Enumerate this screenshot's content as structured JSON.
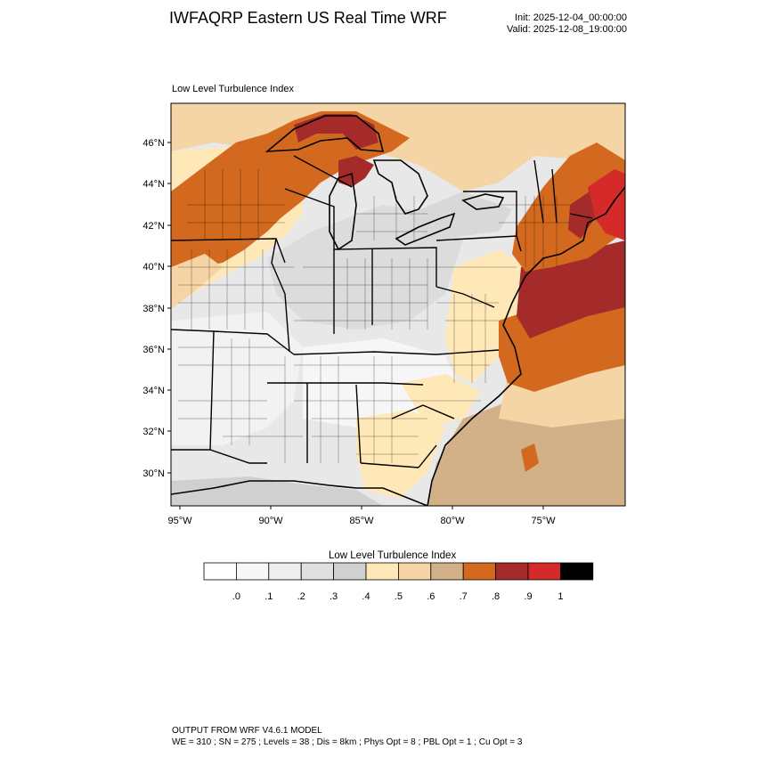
{
  "header": {
    "title": "IWFAQRP Eastern US Real Time WRF",
    "init": "Init: 2025-12-04_00:00:00",
    "valid": "Valid: 2025-12-08_19:00:00"
  },
  "plot": {
    "subtitle": "Low Level Turbulence Index",
    "lat_ticks": [
      "46°N",
      "44°N",
      "42°N",
      "40°N",
      "38°N",
      "36°N",
      "34°N",
      "32°N",
      "30°N"
    ],
    "lon_ticks": [
      "95°W",
      "90°W",
      "85°W",
      "80°W",
      "75°W"
    ]
  },
  "colorbar": {
    "title": "Low Level Turbulence Index",
    "colors": [
      "#ffffff",
      "#f7f7f7",
      "#eeeeee",
      "#e0e0e0",
      "#d0d0d0",
      "#ffe8b8",
      "#f5d5a5",
      "#d2b088",
      "#d2691e",
      "#a52a2a",
      "#d42a2a",
      "#000000"
    ],
    "labels": [
      ".0",
      ".1",
      ".2",
      ".3",
      ".4",
      ".5",
      ".6",
      ".7",
      ".8",
      ".9",
      "1"
    ]
  },
  "footer": {
    "line1": "OUTPUT FROM WRF V4.6.1 MODEL",
    "line2": "WE = 310 ; SN = 275 ; Levels = 38 ; Dis = 8km ; Phys Opt = 8 ; PBL Opt = 1 ; Cu Opt = 3"
  }
}
